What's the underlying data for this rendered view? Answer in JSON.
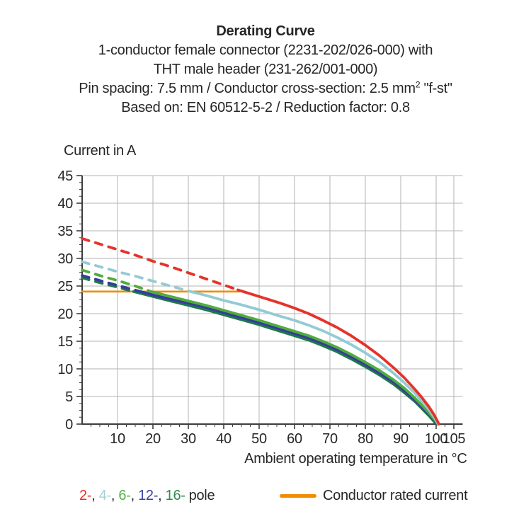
{
  "header": {
    "title": "Derating Curve",
    "subtitle_line1": "1-conductor female connector (2231-202/026-000) with",
    "subtitle_line2": "THT male header (231-262/001-000)",
    "spec_line": {
      "before_sup": "Pin spacing: 7.5 mm / Conductor cross-section: 2.5 mm",
      "sup": "2",
      "after_sup": " \"f-st\""
    },
    "basis_line": "Based on: EN 60512-5-2 / Reduction factor: 0.8"
  },
  "chart_data": {
    "type": "line",
    "title": "Derating Curve",
    "xlabel": "Ambient operating temperature in °C",
    "ylabel": "Current in A",
    "xlim": [
      0,
      107.5
    ],
    "ylim": [
      0,
      45
    ],
    "x_major_ticks": [
      10,
      20,
      30,
      40,
      50,
      60,
      70,
      80,
      90,
      100,
      105
    ],
    "x_minor_step": 2.5,
    "y_major_ticks": [
      0,
      5,
      10,
      15,
      20,
      25,
      30,
      35,
      40,
      45
    ],
    "y_minor_step": 1.25,
    "grid": true,
    "grid_color": "#b3b3b3",
    "axis_color": "#3d3d3d",
    "tick_label_color": "#262626",
    "legend_position": "bottom",
    "rated_current_line": {
      "name": "Conductor rated current",
      "color": "#f28b00",
      "value": 24,
      "x_start": 0,
      "x_end": 44.3
    },
    "series": [
      {
        "name": "2-pole",
        "color": "#e5332a",
        "dashed_points": [
          [
            0,
            33.6
          ],
          [
            5,
            32.6
          ],
          [
            10,
            31.6
          ],
          [
            15,
            30.6
          ],
          [
            20,
            29.5
          ],
          [
            25,
            28.5
          ],
          [
            30,
            27.4
          ],
          [
            35,
            26.3
          ],
          [
            40,
            25.2
          ],
          [
            44,
            24.3
          ]
        ],
        "solid_points": [
          [
            44,
            24.3
          ],
          [
            48,
            23.5
          ],
          [
            52,
            22.7
          ],
          [
            56,
            21.9
          ],
          [
            60,
            21.0
          ],
          [
            64,
            20.0
          ],
          [
            68,
            18.8
          ],
          [
            72,
            17.5
          ],
          [
            76,
            16.0
          ],
          [
            80,
            14.3
          ],
          [
            84,
            12.4
          ],
          [
            88,
            10.2
          ],
          [
            91,
            8.4
          ],
          [
            94,
            6.3
          ],
          [
            96,
            4.8
          ],
          [
            98,
            3.1
          ],
          [
            99.5,
            1.6
          ],
          [
            100.8,
            0
          ]
        ]
      },
      {
        "name": "4-pole",
        "color": "#93cbd5",
        "dashed_points": [
          [
            0,
            29.4
          ],
          [
            5,
            28.5
          ],
          [
            10,
            27.6
          ],
          [
            15,
            26.8
          ],
          [
            20,
            25.9
          ],
          [
            25,
            25.0
          ],
          [
            30,
            24.1
          ]
        ],
        "solid_points": [
          [
            30,
            24.1
          ],
          [
            35,
            23.3
          ],
          [
            40,
            22.4
          ],
          [
            45,
            21.6
          ],
          [
            50,
            20.7
          ],
          [
            55,
            19.7
          ],
          [
            60,
            18.8
          ],
          [
            64,
            17.9
          ],
          [
            68,
            16.9
          ],
          [
            72,
            15.7
          ],
          [
            76,
            14.4
          ],
          [
            80,
            12.9
          ],
          [
            84,
            11.2
          ],
          [
            88,
            9.2
          ],
          [
            91,
            7.5
          ],
          [
            94,
            5.6
          ],
          [
            96,
            4.1
          ],
          [
            98,
            2.6
          ],
          [
            99.6,
            1.1
          ],
          [
            100.6,
            0
          ]
        ]
      },
      {
        "name": "6-pole",
        "color": "#4fad3d",
        "dashed_points": [
          [
            0,
            27.9
          ],
          [
            5,
            26.9
          ],
          [
            10,
            26.0
          ],
          [
            15,
            25.0
          ],
          [
            19.5,
            24.0
          ]
        ],
        "solid_points": [
          [
            19.5,
            24.0
          ],
          [
            25,
            23.1
          ],
          [
            30,
            22.3
          ],
          [
            35,
            21.5
          ],
          [
            40,
            20.6
          ],
          [
            45,
            19.7
          ],
          [
            50,
            18.8
          ],
          [
            55,
            17.8
          ],
          [
            60,
            16.8
          ],
          [
            64,
            16.0
          ],
          [
            68,
            15.0
          ],
          [
            72,
            13.9
          ],
          [
            76,
            12.6
          ],
          [
            80,
            11.2
          ],
          [
            84,
            9.7
          ],
          [
            88,
            8.0
          ],
          [
            91,
            6.5
          ],
          [
            94,
            4.7
          ],
          [
            96,
            3.4
          ],
          [
            98,
            2.0
          ],
          [
            99.7,
            0.7
          ],
          [
            100.5,
            0
          ]
        ]
      },
      {
        "name": "12-pole",
        "color": "#383a9d",
        "dashed_points": [
          [
            0,
            26.9
          ],
          [
            5,
            26.0
          ],
          [
            10,
            25.1
          ],
          [
            16.5,
            24.0
          ]
        ],
        "solid_points": [
          [
            16.5,
            24.0
          ],
          [
            20,
            23.4
          ],
          [
            25,
            22.6
          ],
          [
            30,
            21.9
          ],
          [
            35,
            21.1
          ],
          [
            40,
            20.2
          ],
          [
            45,
            19.3
          ],
          [
            50,
            18.4
          ],
          [
            55,
            17.4
          ],
          [
            60,
            16.4
          ],
          [
            64,
            15.6
          ],
          [
            68,
            14.6
          ],
          [
            72,
            13.5
          ],
          [
            76,
            12.2
          ],
          [
            80,
            10.8
          ],
          [
            84,
            9.3
          ],
          [
            88,
            7.6
          ],
          [
            91,
            6.1
          ],
          [
            94,
            4.4
          ],
          [
            96,
            3.1
          ],
          [
            98,
            1.8
          ],
          [
            99.6,
            0.6
          ],
          [
            100.4,
            0
          ]
        ]
      },
      {
        "name": "16-pole",
        "color": "#1e7b4a",
        "dashed_points": [
          [
            0,
            26.5
          ],
          [
            5,
            25.6
          ],
          [
            10,
            24.8
          ],
          [
            14.5,
            24.0
          ]
        ],
        "solid_points": [
          [
            14.5,
            24.0
          ],
          [
            20,
            23.1
          ],
          [
            25,
            22.3
          ],
          [
            30,
            21.5
          ],
          [
            35,
            20.7
          ],
          [
            40,
            19.8
          ],
          [
            45,
            18.9
          ],
          [
            50,
            18.0
          ],
          [
            55,
            17.0
          ],
          [
            60,
            16.0
          ],
          [
            64,
            15.2
          ],
          [
            68,
            14.2
          ],
          [
            72,
            13.1
          ],
          [
            76,
            11.8
          ],
          [
            80,
            10.4
          ],
          [
            84,
            8.9
          ],
          [
            88,
            7.2
          ],
          [
            91,
            5.7
          ],
          [
            94,
            4.1
          ],
          [
            96,
            2.8
          ],
          [
            98,
            1.5
          ],
          [
            99.5,
            0.4
          ],
          [
            100.3,
            0
          ]
        ]
      }
    ]
  },
  "legend": {
    "separator": ", ",
    "suffix": "pole",
    "pole_items": [
      {
        "label": "2-",
        "color": "#e5332a"
      },
      {
        "label": "4-",
        "color": "#a5d2d9"
      },
      {
        "label": "6-",
        "color": "#54b148"
      },
      {
        "label": "12-",
        "color": "#3c3f9f"
      },
      {
        "label": "16-",
        "color": "#2f8b55"
      }
    ],
    "rated_label": "Conductor rated current",
    "rated_color": "#f28b00"
  }
}
